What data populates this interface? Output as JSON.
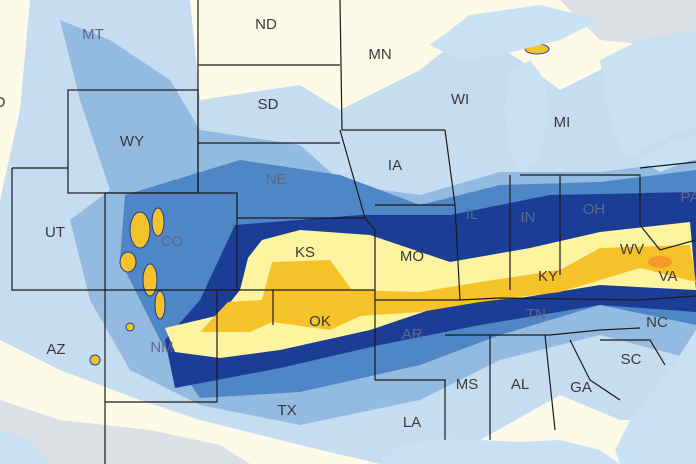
{
  "map": {
    "colors": {
      "land": "#fdfbe8",
      "water": "#c8e2f4",
      "foreign_land": "#dcdfe3",
      "band_light": "#c6dcf0",
      "band_mid": "#93bbe2",
      "band_blue": "#4f86c6",
      "band_navy": "#1c3d96",
      "band_pale_yellow": "#fdf4a0",
      "band_gold": "#f6c22a",
      "band_orange": "#f39a2a"
    },
    "state_labels": [
      {
        "abbr": "ID"
      },
      {
        "abbr": "MT"
      },
      {
        "abbr": "ND"
      },
      {
        "abbr": "MN"
      },
      {
        "abbr": "WI"
      },
      {
        "abbr": "MI"
      },
      {
        "abbr": "SD"
      },
      {
        "abbr": "WY"
      },
      {
        "abbr": "NE"
      },
      {
        "abbr": "IA"
      },
      {
        "abbr": "UT"
      },
      {
        "abbr": "CO"
      },
      {
        "abbr": "KS"
      },
      {
        "abbr": "MO"
      },
      {
        "abbr": "IL"
      },
      {
        "abbr": "IN"
      },
      {
        "abbr": "OH"
      },
      {
        "abbr": "PA"
      },
      {
        "abbr": "WV"
      },
      {
        "abbr": "KY"
      },
      {
        "abbr": "VA"
      },
      {
        "abbr": "AZ"
      },
      {
        "abbr": "NM"
      },
      {
        "abbr": "OK"
      },
      {
        "abbr": "TN"
      },
      {
        "abbr": "NC"
      },
      {
        "abbr": "AR"
      },
      {
        "abbr": "SC"
      },
      {
        "abbr": "MS"
      },
      {
        "abbr": "AL"
      },
      {
        "abbr": "GA"
      },
      {
        "abbr": "TX"
      },
      {
        "abbr": "LA"
      }
    ]
  }
}
